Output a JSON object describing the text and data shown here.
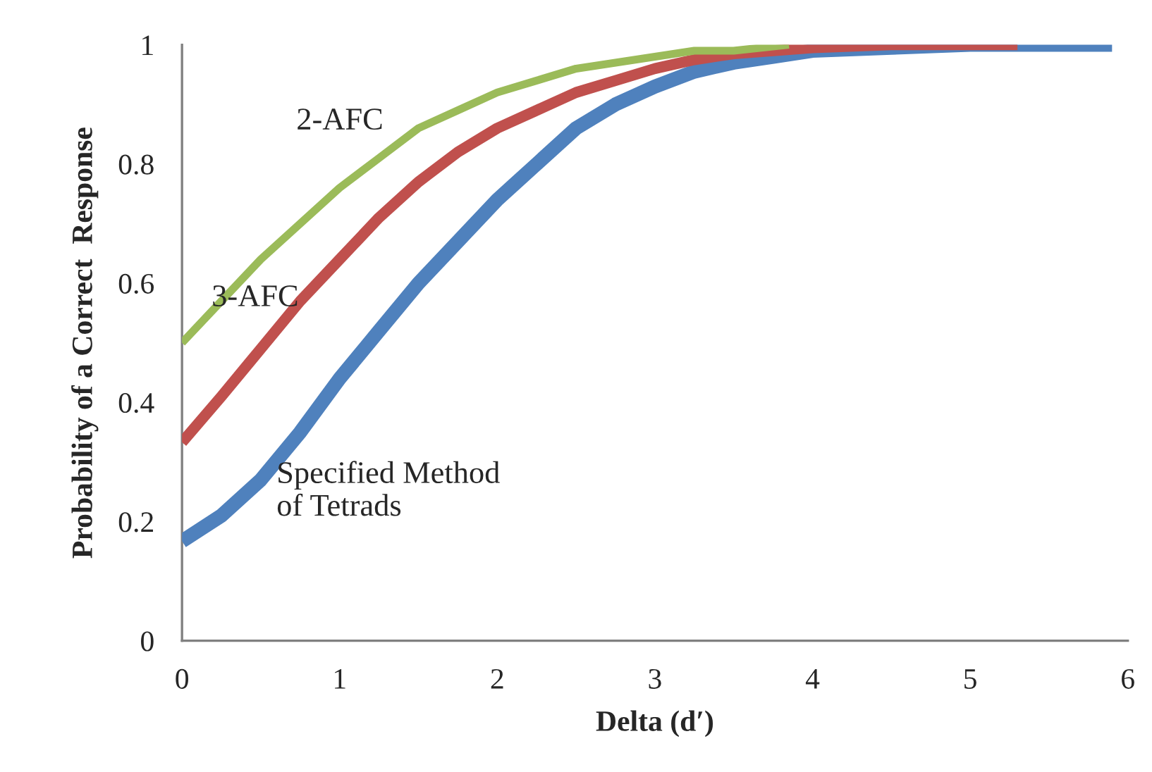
{
  "chart_data": {
    "type": "line",
    "xlabel": "Delta (d′)",
    "ylabel": "Probability of a Correct  Response",
    "xlim": [
      0,
      6
    ],
    "xticks": [
      0,
      1,
      2,
      3,
      4,
      5,
      6
    ],
    "ylim": [
      0,
      1
    ],
    "yticks": [
      0,
      0.2,
      0.4,
      0.6,
      0.8,
      1
    ],
    "grid": false,
    "legend": false,
    "marker": "none",
    "line_style": "solid",
    "series": [
      {
        "name": "2-AFC",
        "color": "#9bbb59",
        "x": [
          0,
          0.25,
          0.5,
          0.75,
          1,
          1.25,
          1.5,
          1.75,
          2,
          2.25,
          2.5,
          2.75,
          3,
          3.25,
          3.5,
          3.85
        ],
        "values": [
          0.5,
          0.57,
          0.64,
          0.7,
          0.76,
          0.81,
          0.86,
          0.89,
          0.92,
          0.94,
          0.96,
          0.97,
          0.98,
          0.99,
          0.99,
          1.0
        ]
      },
      {
        "name": "3-AFC",
        "color": "#c0504d",
        "x": [
          0,
          0.25,
          0.5,
          0.75,
          1,
          1.25,
          1.5,
          1.75,
          2,
          2.25,
          2.5,
          2.75,
          3,
          3.25,
          3.5,
          3.75,
          4,
          4.5,
          5.3
        ],
        "values": [
          0.333,
          0.41,
          0.49,
          0.57,
          0.64,
          0.71,
          0.77,
          0.82,
          0.86,
          0.89,
          0.92,
          0.94,
          0.96,
          0.975,
          0.985,
          0.99,
          0.995,
          1.0,
          1.0
        ]
      },
      {
        "name": "Specified Method\nof Tetrads",
        "color": "#4f81bd",
        "x": [
          0,
          0.25,
          0.5,
          0.75,
          1,
          1.25,
          1.5,
          1.75,
          2,
          2.25,
          2.5,
          2.75,
          3,
          3.25,
          3.5,
          3.75,
          4,
          4.5,
          5,
          5.9
        ],
        "values": [
          0.167,
          0.21,
          0.27,
          0.35,
          0.44,
          0.52,
          0.6,
          0.67,
          0.74,
          0.8,
          0.86,
          0.9,
          0.93,
          0.955,
          0.97,
          0.98,
          0.99,
          0.995,
          1.0,
          1.0
        ]
      }
    ]
  }
}
